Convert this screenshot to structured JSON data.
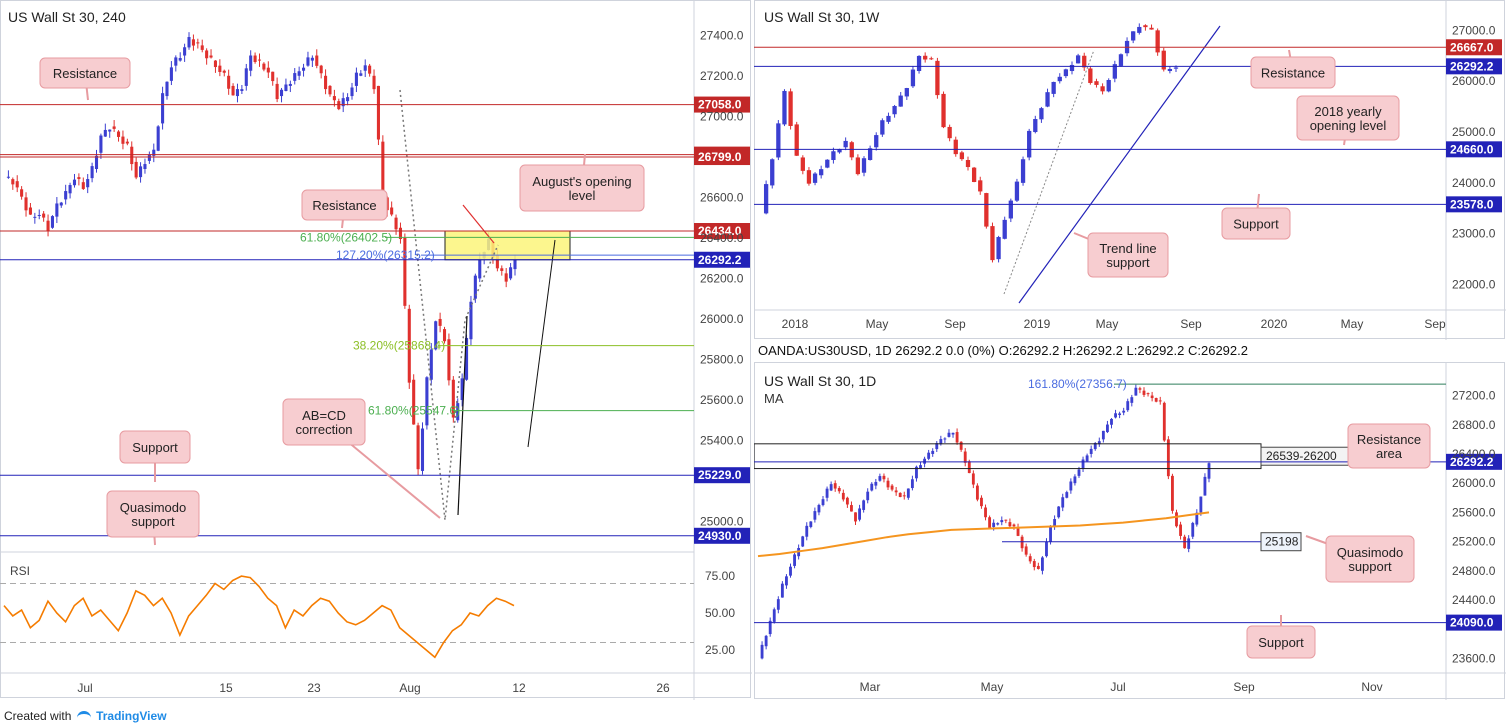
{
  "footer": {
    "created_with": "Created with",
    "brand": "TradingView"
  },
  "colors": {
    "bull": "#3b3fd1",
    "bear": "#e0302d",
    "red_level": "#c22828",
    "blue_level": "#2222b8",
    "callout_bg": "#f7cdd0",
    "callout_border": "#e79ba0",
    "label_red": "#e03030",
    "label_blue": "#2a2ab5",
    "yellow_zone": "#fbf47a",
    "ma": "#f5951f",
    "fib_green": "#4caf50",
    "fib_lime": "#8cbf26",
    "fib_blue": "#4a6be0",
    "rsi": "#f57c00"
  },
  "panels": {
    "p4h": {
      "title": "US Wall St 30, 240",
      "price_ticks": [
        "27400.0",
        "27200.0",
        "27000.0",
        "26600.0",
        "26400.0",
        "26200.0",
        "26000.0",
        "25800.0",
        "25600.0",
        "25400.0",
        "25000.0"
      ],
      "levels": [
        {
          "value": "27058.0",
          "kind": "red"
        },
        {
          "value": "26811.0",
          "kind": "red"
        },
        {
          "value": "26799.0",
          "kind": "red"
        },
        {
          "value": "26434.0",
          "kind": "red"
        },
        {
          "value": "26292.2",
          "kind": "blue"
        },
        {
          "value": "25229.0",
          "kind": "blue"
        },
        {
          "value": "24930.0",
          "kind": "blue"
        }
      ],
      "fibs": [
        {
          "label": "61.80%(26402.5)",
          "kind": "green"
        },
        {
          "label": "127.20%(26315.2)",
          "kind": "blue"
        },
        {
          "label": "38.20%(25868.4)",
          "kind": "lime"
        },
        {
          "label": "61.80%(25547.6)",
          "kind": "green"
        }
      ],
      "callouts": [
        "Resistance",
        "Resistance",
        "August's opening level",
        "Support",
        "Quasimodo support",
        "AB=CD correction"
      ],
      "x_ticks": [
        "Jul",
        "15",
        "23",
        "Aug",
        "12",
        "26"
      ],
      "rsi": {
        "label": "RSI",
        "ticks": [
          "75.00",
          "50.00",
          "25.00"
        ]
      }
    },
    "p1w": {
      "title": "US Wall St 30, 1W",
      "price_ticks": [
        "27000.0",
        "26000.0",
        "25000.0",
        "24000.0",
        "23000.0",
        "22000.0"
      ],
      "levels": [
        {
          "value": "26667.0",
          "kind": "red"
        },
        {
          "value": "26292.2",
          "kind": "blue"
        },
        {
          "value": "24660.0",
          "kind": "blue"
        },
        {
          "value": "23578.0",
          "kind": "blue"
        }
      ],
      "callouts": [
        "Resistance",
        "2018 yearly opening level",
        "Support",
        "Trend line support"
      ],
      "x_ticks": [
        "2018",
        "May",
        "Sep",
        "2019",
        "May",
        "Sep",
        "2020",
        "May",
        "Sep"
      ]
    },
    "p1d": {
      "header": "OANDA:US30USD, 1D 26292.2 0.0 (0%) O:26292.2 H:26292.2 L:26292.2 C:26292.2",
      "title": "US Wall St 30, 1D",
      "ma_label": "MA",
      "price_ticks": [
        "27200.0",
        "26800.0",
        "26400.0",
        "26000.0",
        "25600.0",
        "25200.0",
        "24800.0",
        "24400.0",
        "23600.0"
      ],
      "levels": [
        {
          "value": "26292.2",
          "kind": "blue"
        },
        {
          "value": "24090.0",
          "kind": "blue"
        }
      ],
      "fib": "161.80%(27356.7)",
      "zone_label": "26539-26200",
      "qm_label": "25198",
      "callouts": [
        "Resistance area",
        "Quasimodo support",
        "Support"
      ],
      "x_ticks": [
        "Mar",
        "May",
        "Jul",
        "Sep",
        "Nov"
      ]
    }
  },
  "chart_data": [
    {
      "type": "candlestick",
      "title": "US Wall St 30, 240",
      "ylim": [
        24850,
        27500
      ],
      "x_ticks": [
        "Jul",
        "15",
        "23",
        "Aug",
        "12",
        "26"
      ],
      "path": [
        26700,
        26680,
        26600,
        26500,
        26520,
        26450,
        26560,
        26620,
        26700,
        26650,
        26740,
        26900,
        26950,
        26900,
        26850,
        26700,
        26780,
        26830,
        27100,
        27250,
        27300,
        27380,
        27350,
        27300,
        27250,
        27200,
        27100,
        27150,
        27300,
        27260,
        27220,
        27100,
        27150,
        27200,
        27250,
        27300,
        27200,
        27100,
        27050,
        27100,
        27200,
        27250,
        27150,
        26600,
        26500,
        26400,
        25700,
        25250,
        25700,
        26000,
        25900,
        25500,
        25700,
        26100,
        26300,
        26380,
        26250,
        26200,
        26292
      ]
    },
    {
      "type": "candlestick",
      "title": "US Wall St 30, 1W",
      "ylim": [
        21500,
        27400
      ],
      "x_ticks": [
        "2018",
        "May",
        "Sep",
        "2019",
        "May",
        "Sep",
        "2020",
        "May",
        "Sep"
      ],
      "path": [
        23400,
        24500,
        25800,
        24500,
        24000,
        24300,
        24600,
        24800,
        24200,
        24700,
        25200,
        25500,
        25900,
        26500,
        26400,
        25100,
        24600,
        24300,
        23800,
        22500,
        23300,
        24000,
        25000,
        25500,
        26000,
        26200,
        26500,
        26000,
        25800,
        26300,
        26800,
        27100,
        27000,
        26200,
        26292
      ]
    },
    {
      "type": "candlestick",
      "title": "US Wall St 30, 1D",
      "ylim": [
        23400,
        27550
      ],
      "x_ticks": [
        "Mar",
        "May",
        "Jul",
        "Sep",
        "Nov"
      ],
      "path": [
        23600,
        24100,
        24600,
        25000,
        25400,
        25700,
        26000,
        25800,
        25500,
        25900,
        26100,
        25900,
        25800,
        26200,
        26400,
        26600,
        26700,
        26300,
        25800,
        25400,
        25500,
        25400,
        25000,
        24800,
        25400,
        25800,
        26100,
        26400,
        26600,
        26900,
        27000,
        27300,
        27200,
        27100,
        25600,
        25100,
        25600,
        26292
      ],
      "ma": [
        25000,
        25030,
        25070,
        25110,
        25160,
        25210,
        25260,
        25300,
        25330,
        25360,
        25370,
        25380,
        25390,
        25400,
        25410,
        25420,
        25440,
        25460,
        25490,
        25520,
        25560,
        25600
      ]
    }
  ]
}
